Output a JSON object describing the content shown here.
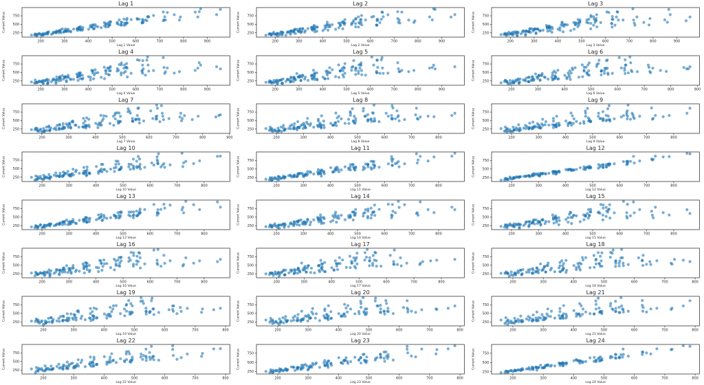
{
  "figure": {
    "background": "#ffffff",
    "grid_rows": 8,
    "grid_cols": 3
  },
  "chart_data": {
    "type": "scatter",
    "subplot_count": 24,
    "lags": [
      1,
      2,
      3,
      4,
      5,
      6,
      7,
      8,
      9,
      10,
      11,
      12,
      13,
      14,
      15,
      16,
      17,
      18,
      19,
      20,
      21,
      22,
      23,
      24
    ],
    "titles": [
      "Lag 1",
      "Lag 2",
      "Lag 3",
      "Lag 4",
      "Lag 5",
      "Lag 6",
      "Lag 7",
      "Lag 8",
      "Lag 9",
      "Lag 10",
      "Lag 11",
      "Lag 12",
      "Lag 13",
      "Lag 14",
      "Lag 15",
      "Lag 16",
      "Lag 17",
      "Lag 18",
      "Lag 19",
      "Lag 20",
      "Lag 21",
      "Lag 22",
      "Lag 23",
      "Lag 24"
    ],
    "xlabels": [
      "Lag 1 Value",
      "Lag 2 Value",
      "Lag 3 Value",
      "Lag 4 Value",
      "Lag 5 Value",
      "Lag 6 Value",
      "Lag 7 Value",
      "Lag 8 Value",
      "Lag 9 Value",
      "Lag 10 Value",
      "Lag 11 Value",
      "Lag 12 Value",
      "Lag 13 Value",
      "Lag 14 Value",
      "Lag 15 Value",
      "Lag 16 Value",
      "Lag 17 Value",
      "Lag 18 Value",
      "Lag 19 Value",
      "Lag 20 Value",
      "Lag 21 Value",
      "Lag 22 Value",
      "Lag 23 Value",
      "Lag 24 Value"
    ],
    "ylabel": "Current Value",
    "point_rule": "each subplot with lag k plots points (series_values[t-k], series_values[t]) for t = k..143",
    "series_values": [
      174,
      183,
      205,
      200,
      188,
      209,
      229,
      229,
      211,
      184,
      161,
      183,
      178,
      195,
      219,
      209,
      194,
      231,
      264,
      264,
      245,
      206,
      177,
      217,
      225,
      233,
      276,
      253,
      267,
      276,
      308,
      308,
      285,
      251,
      226,
      257,
      265,
      279,
      299,
      281,
      284,
      338,
      357,
      375,
      324,
      296,
      267,
      301,
      304,
      304,
      366,
      364,
      355,
      377,
      409,
      422,
      367,
      327,
      279,
      312,
      316,
      291,
      364,
      352,
      363,
      409,
      468,
      454,
      401,
      355,
      315,
      355,
      375,
      361,
      414,
      417,
      419,
      488,
      564,
      538,
      484,
      425,
      367,
      431,
      440,
      429,
      491,
      485,
      493,
      580,
      640,
      628,
      550,
      474,
      420,
      474,
      488,
      467,
      552,
      539,
      550,
      654,
      721,
      724,
      626,
      538,
      473,
      521,
      527,
      493,
      561,
      539,
      563,
      674,
      761,
      783,
      626,
      556,
      481,
      522,
      558,
      530,
      629,
      614,
      651,
      732,
      849,
      860,
      718,
      631,
      561,
      628,
      646,
      606,
      649,
      715,
      866,
      872,
      955,
      939,
      787,
      715,
      605,
      670
    ],
    "y_ticks": [
      250,
      500,
      750
    ],
    "x_tick_step": 100,
    "y_tick_step": 250,
    "axis_margin_fraction": 0.05,
    "marker_color": "#1f77b4",
    "marker_alpha": 0.6,
    "marker_radius": 2.1,
    "spine_color": "#1a1a1a",
    "text_color": "#262626"
  }
}
